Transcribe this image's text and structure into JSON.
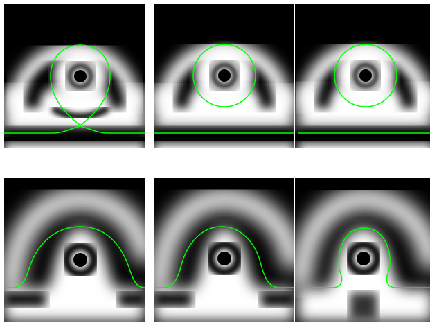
{
  "figure": {
    "panel_count": 6,
    "colors": {
      "background": "#ffffff",
      "field_dark": "#000000",
      "field_bright": "#ffffff",
      "contour": "#00ff00"
    },
    "panels": [
      {
        "name": "panel-1",
        "state": "droplet-with-pinch"
      },
      {
        "name": "panel-2",
        "state": "droplet-separated"
      },
      {
        "name": "panel-3",
        "state": "droplet-separated"
      },
      {
        "name": "panel-4",
        "state": "dome"
      },
      {
        "name": "panel-5",
        "state": "dome"
      },
      {
        "name": "panel-6",
        "state": "dome-necking"
      }
    ]
  }
}
